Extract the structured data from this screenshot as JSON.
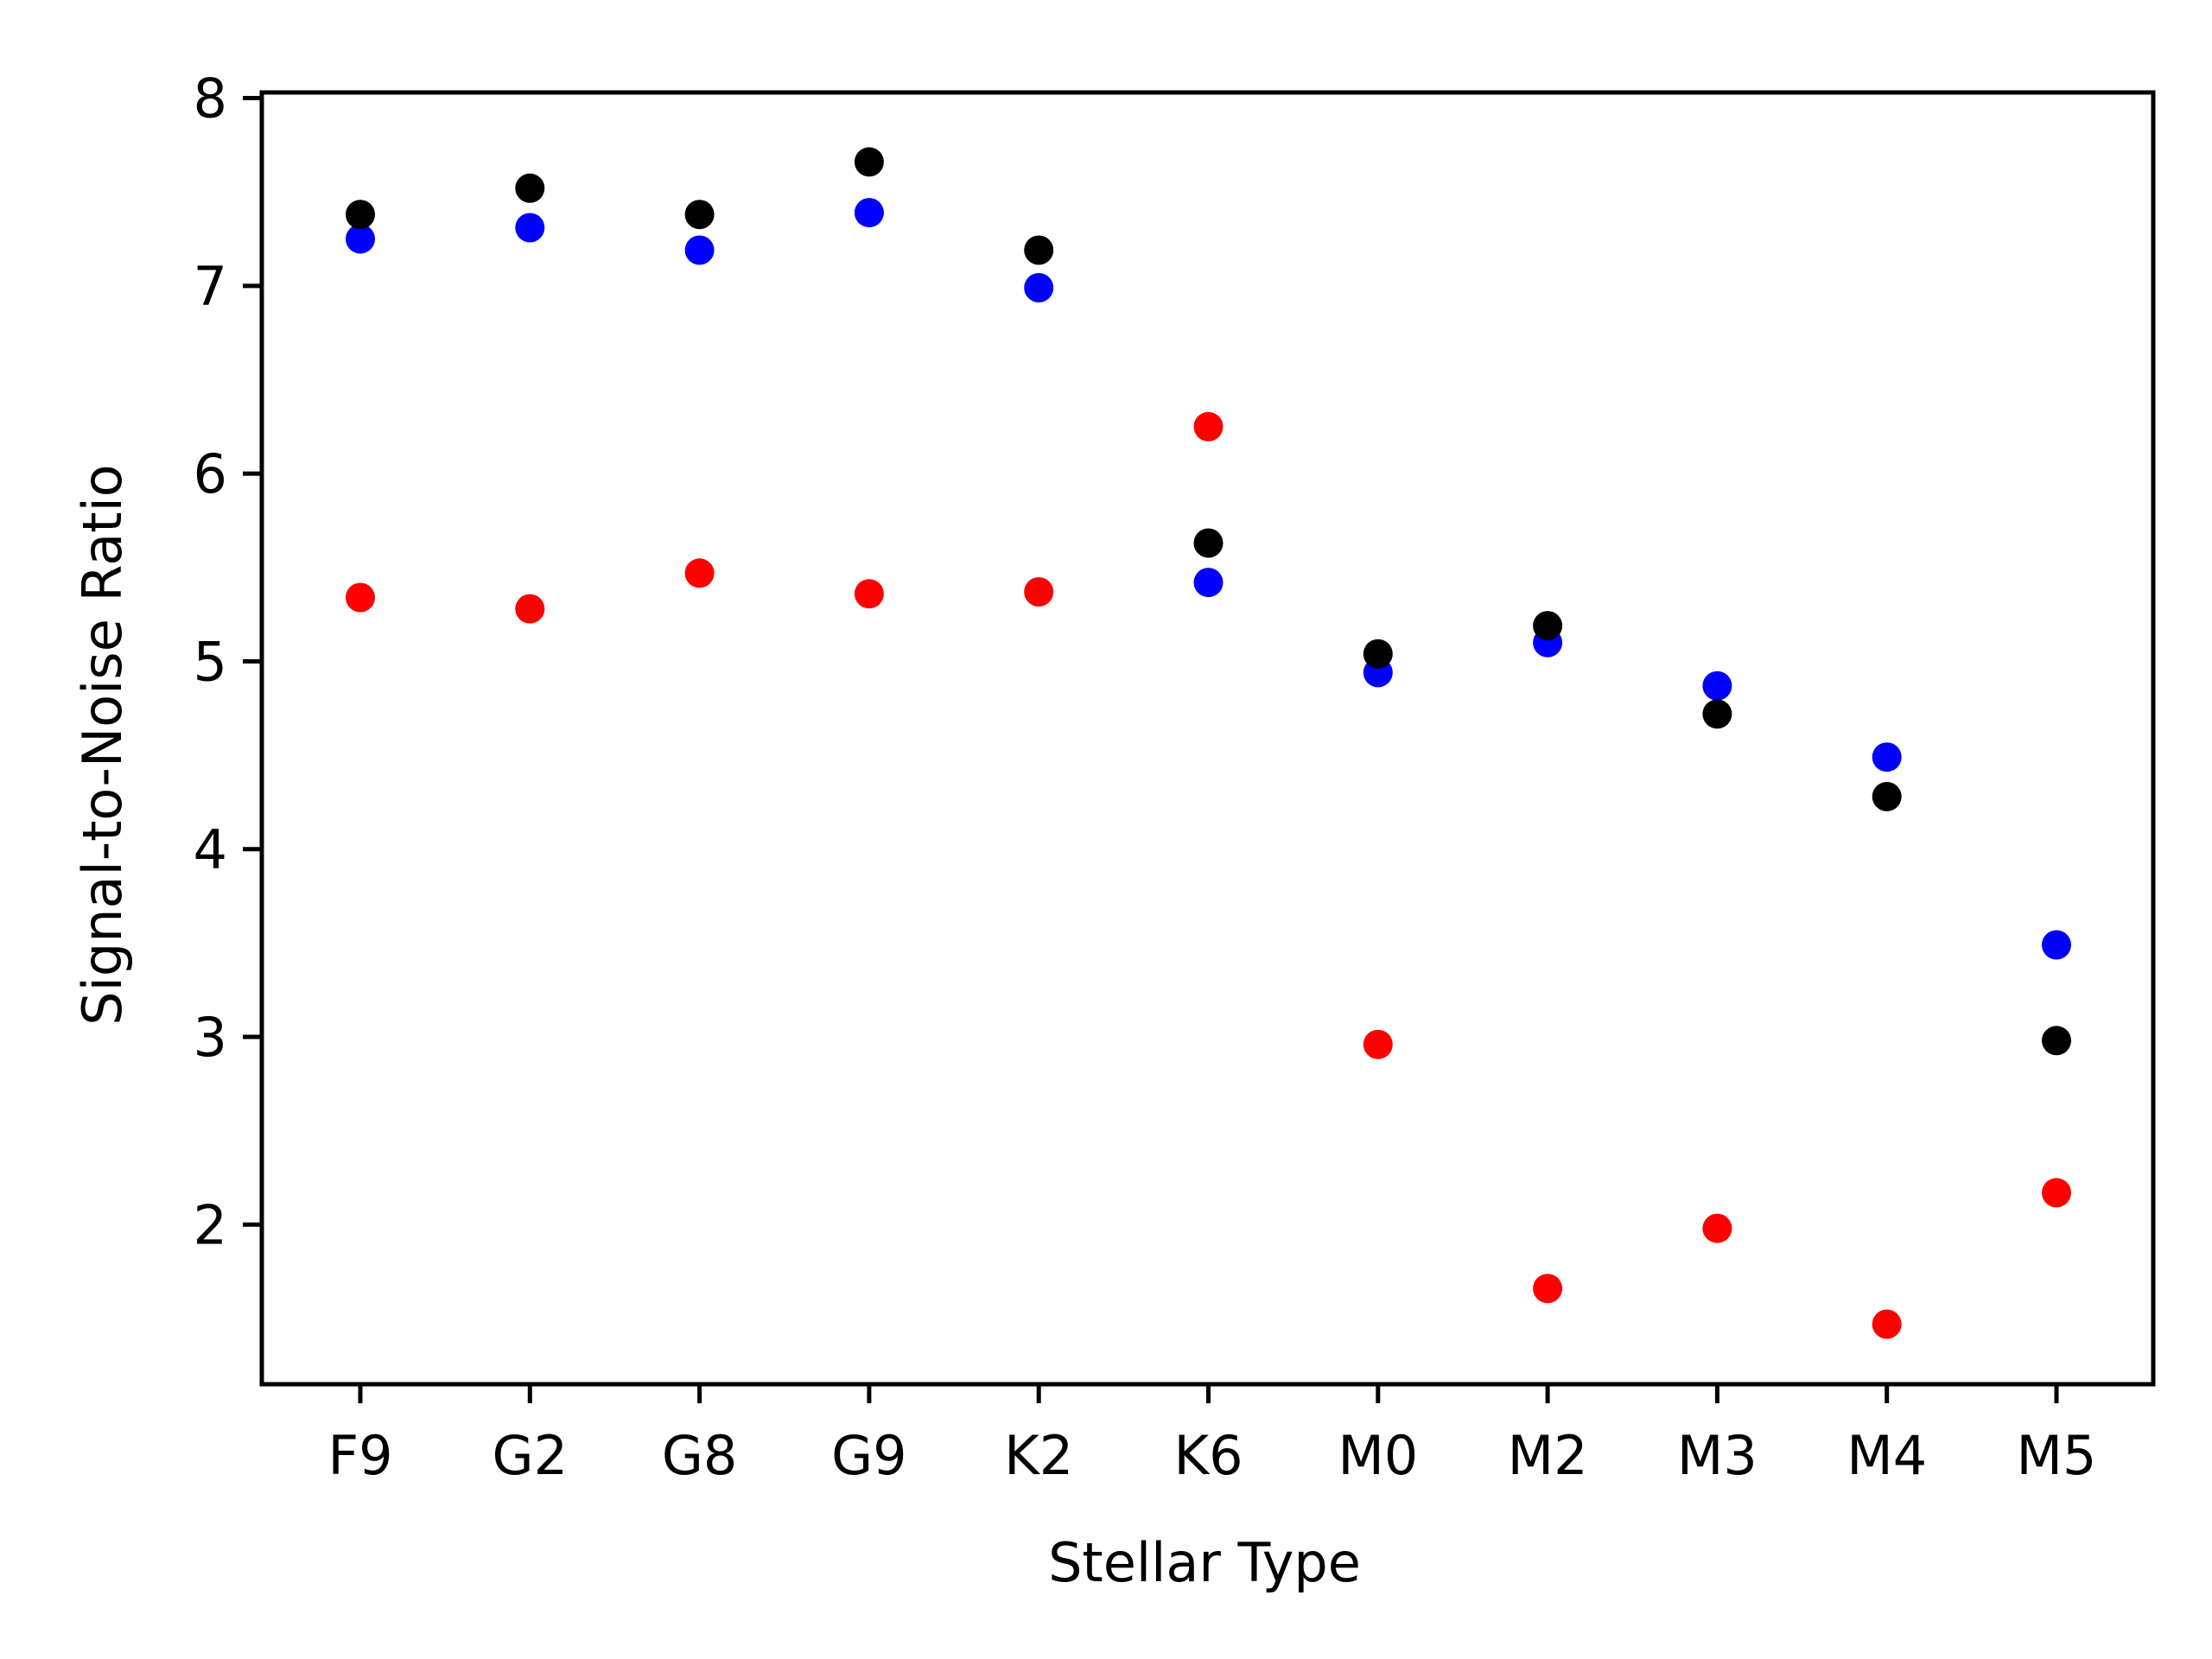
{
  "chart_data": {
    "type": "scatter",
    "title": "",
    "xlabel": "Stellar Type",
    "ylabel": "Signal-to-Noise Ratio",
    "categories": [
      "F9",
      "G2",
      "G8",
      "G9",
      "K2",
      "K6",
      "M0",
      "M2",
      "M3",
      "M4",
      "M5"
    ],
    "yticks": [
      2,
      3,
      4,
      5,
      6,
      7,
      8
    ],
    "ylim": [
      1.15,
      8.03
    ],
    "grid": false,
    "legend": "none",
    "series": [
      {
        "color": "#ff0000",
        "values": [
          5.34,
          5.28,
          5.47,
          5.36,
          5.37,
          6.25,
          2.96,
          1.66,
          1.98,
          1.47,
          2.17
        ]
      },
      {
        "color": "#0000ff",
        "values": [
          7.25,
          7.31,
          7.19,
          7.39,
          6.99,
          5.42,
          4.94,
          5.1,
          4.87,
          4.49,
          3.49
        ]
      },
      {
        "color": "#000000",
        "values": [
          7.38,
          7.52,
          7.38,
          7.66,
          7.19,
          5.63,
          5.04,
          5.19,
          4.72,
          4.28,
          2.98
        ]
      }
    ]
  }
}
